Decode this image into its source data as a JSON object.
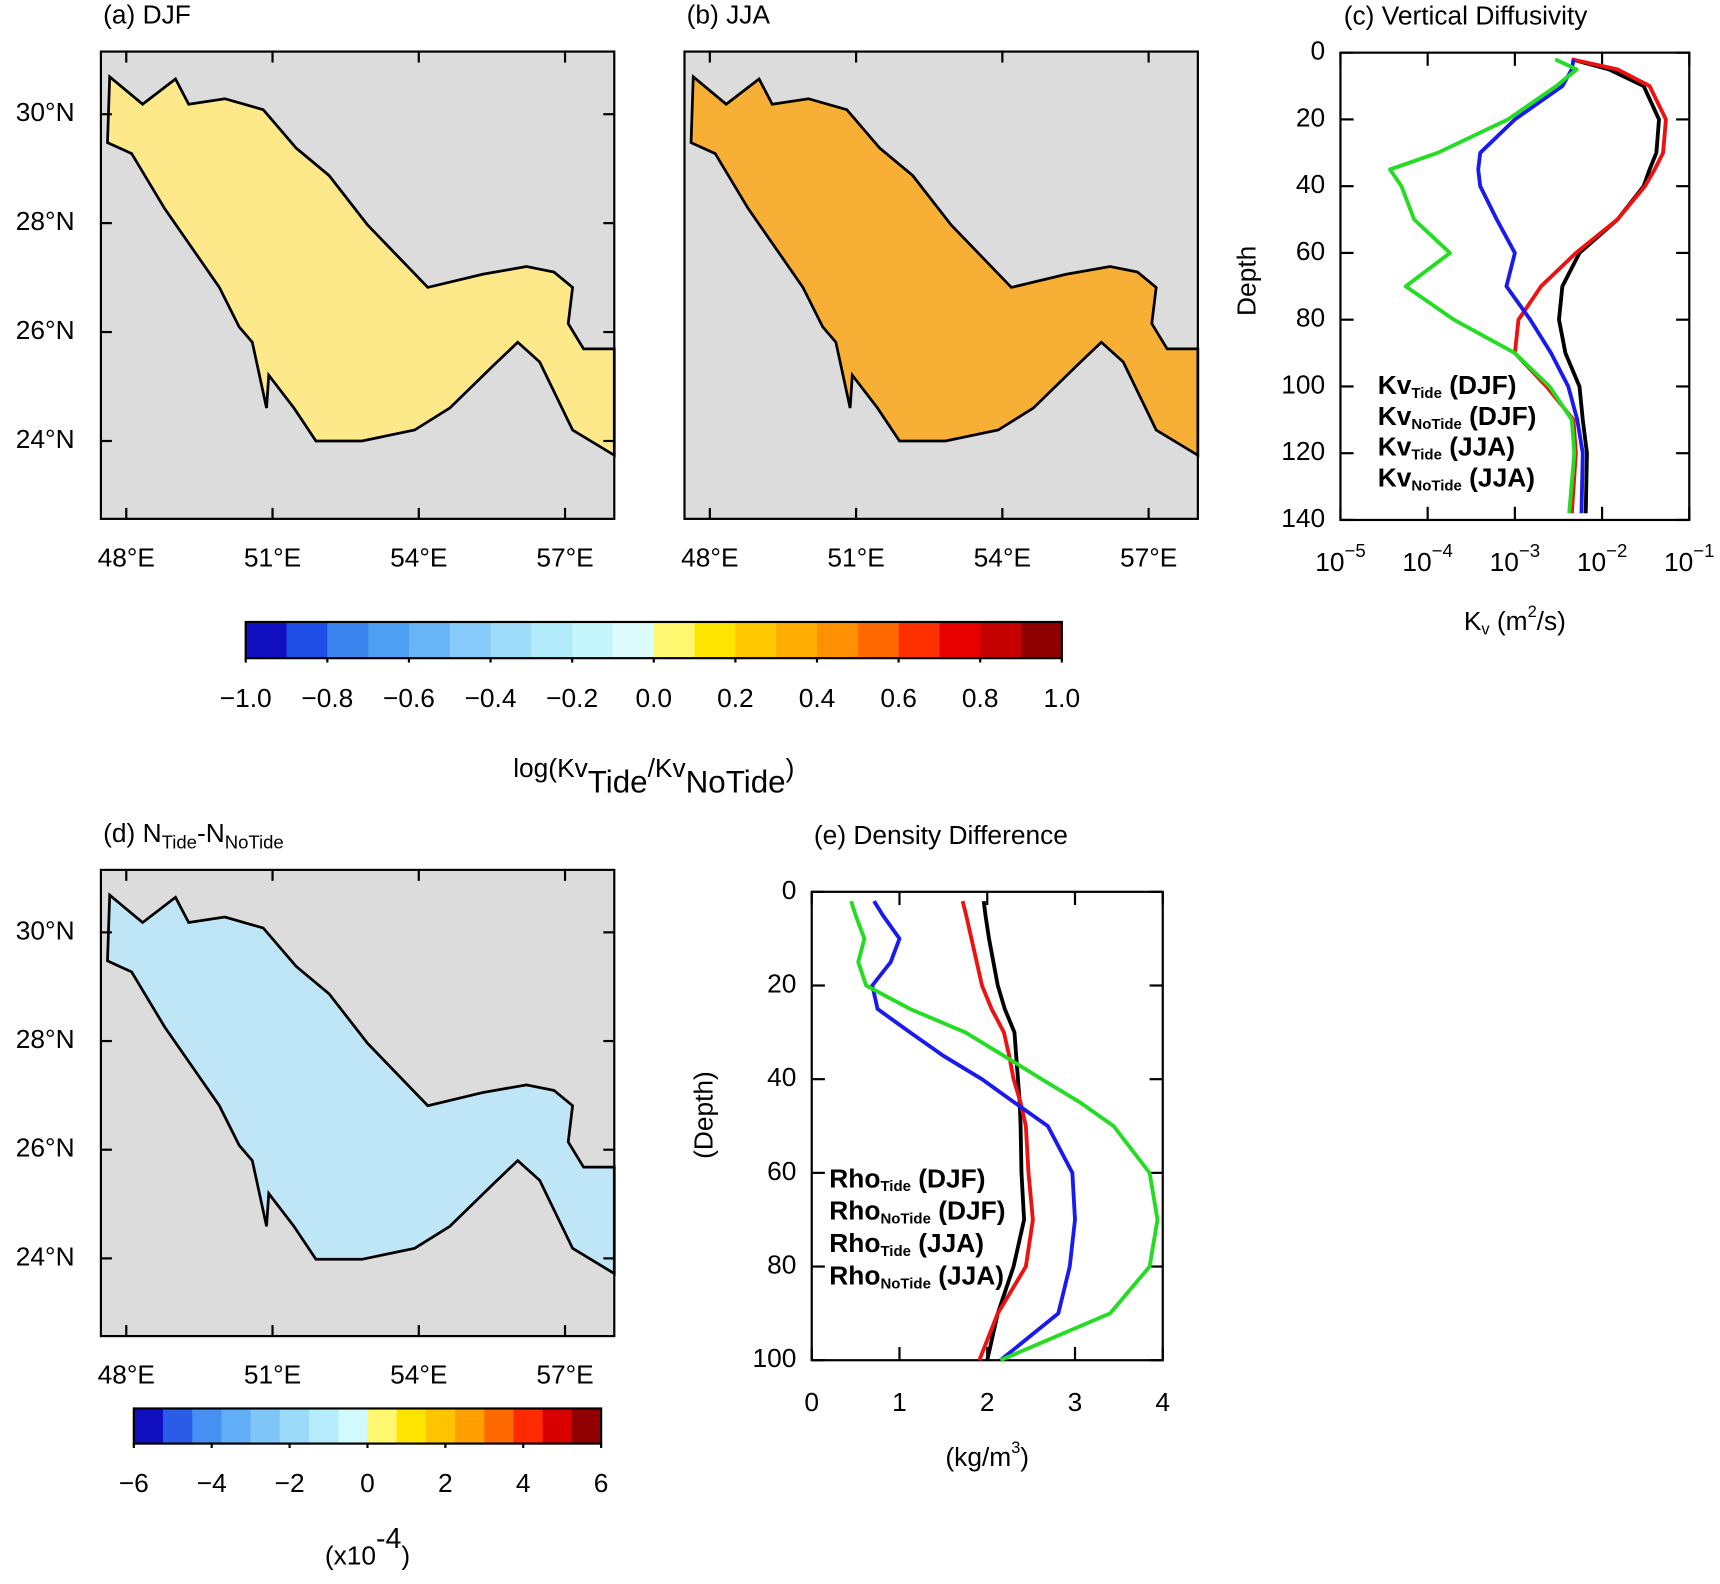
{
  "chart_data": [
    {
      "type": "map",
      "title": "(a) DJF",
      "color": "#fde98a",
      "xlim": [
        47.48,
        58.01
      ],
      "ylim": [
        22.57,
        31.15
      ],
      "xticks": [
        {
          "value": 48,
          "label": "48°E"
        },
        {
          "value": 51,
          "label": "51°E"
        },
        {
          "value": 54,
          "label": "54°E"
        },
        {
          "value": 57,
          "label": "57°E"
        }
      ],
      "yticks": [
        {
          "value": 24,
          "label": "24°N"
        },
        {
          "value": 26,
          "label": "26°N"
        },
        {
          "value": 28,
          "label": "28°N"
        },
        {
          "value": 30,
          "label": "30°N"
        }
      ]
    },
    {
      "type": "map",
      "title": "(b) JJA",
      "color": "#f7b035",
      "xlim": [
        47.48,
        58.01
      ],
      "ylim": [
        22.57,
        31.15
      ],
      "xticks": [
        {
          "value": 48,
          "label": "48°E"
        },
        {
          "value": 51,
          "label": "51°E"
        },
        {
          "value": 54,
          "label": "54°E"
        },
        {
          "value": 57,
          "label": "57°E"
        }
      ]
    },
    {
      "type": "line",
      "title": "(c) Vertical Diffusivity",
      "xlog": true,
      "yinvert": true,
      "xlim": [
        1e-05,
        0.1
      ],
      "ylim": [
        0,
        140
      ],
      "xticks": [
        {
          "value": 1e-05,
          "label": "10",
          "sup": "−5"
        },
        {
          "value": 0.0001,
          "label": "10",
          "sup": "−4"
        },
        {
          "value": 0.001,
          "label": "10",
          "sup": "−3"
        },
        {
          "value": 0.01,
          "label": "10",
          "sup": "−2"
        },
        {
          "value": 0.1,
          "label": "10",
          "sup": "−1"
        }
      ],
      "yticks": [
        0,
        20,
        40,
        60,
        80,
        100,
        120,
        140
      ],
      "xlabel": [
        {
          "text": "K"
        },
        {
          "text": "v",
          "shift": "sub"
        },
        {
          "text": " (m"
        },
        {
          "text": "2",
          "shift": "sup"
        },
        {
          "text": "/s)"
        }
      ],
      "ylabel": "Depth",
      "y": [
        2,
        5,
        10,
        20,
        30,
        35,
        40,
        50,
        60,
        70,
        80,
        90,
        100,
        110,
        120,
        138
      ],
      "series": [
        {
          "name": [
            {
              "text": "Kv"
            },
            {
              "text": "Tide",
              "shift": "sub"
            },
            {
              "text": " (DJF)"
            }
          ],
          "color": "#000000",
          "values": [
            0.0045,
            0.012,
            0.03,
            0.045,
            0.042,
            0.035,
            0.03,
            0.015,
            0.0055,
            0.0035,
            0.0032,
            0.0038,
            0.0055,
            0.006,
            0.0067,
            0.0065
          ]
        },
        {
          "name": [
            {
              "text": "Kv"
            },
            {
              "text": "NoTide",
              "shift": "sub"
            },
            {
              "text": " (DJF)"
            }
          ],
          "color": "#ee1111",
          "values": [
            0.0045,
            0.015,
            0.035,
            0.054,
            0.05,
            0.04,
            0.031,
            0.015,
            0.005,
            0.002,
            0.0011,
            0.001,
            0.0023,
            0.0047,
            0.005,
            0.0045
          ]
        },
        {
          "name": [
            {
              "text": "Kv"
            },
            {
              "text": "Tide",
              "shift": "sub"
            },
            {
              "text": " (JJA)"
            }
          ],
          "color": "#1a1aee",
          "values": [
            0.0047,
            0.0045,
            0.0035,
            0.001,
            0.0004,
            0.00038,
            0.0004,
            0.00062,
            0.001,
            0.0008,
            0.0015,
            0.0026,
            0.0041,
            0.0052,
            0.006,
            0.0058
          ]
        },
        {
          "name": [
            {
              "text": "Kv"
            },
            {
              "text": "NoTide",
              "shift": "sub"
            },
            {
              "text": " (JJA)"
            }
          ],
          "color": "#22dd22",
          "values": [
            0.0029,
            0.0051,
            0.003,
            0.00083,
            0.00013,
            3.7e-05,
            5e-05,
            7e-05,
            0.00018,
            5.6e-05,
            0.0002,
            0.001,
            0.0025,
            0.0045,
            0.0048,
            0.0042
          ]
        }
      ]
    },
    {
      "type": "colorbar",
      "colors": [
        "#1010c0",
        "#1e4ee6",
        "#3a86ee",
        "#4d9ff3",
        "#68b6f8",
        "#86cbf9",
        "#9fdcfa",
        "#b2ecfb",
        "#c4f6fb",
        "#ddfdfd",
        "#fff870",
        "#ffe600",
        "#ffc800",
        "#ffae00",
        "#ff9000",
        "#ff6a00",
        "#ff3000",
        "#e80000",
        "#c40000",
        "#8e0000"
      ],
      "lim": [
        -1,
        1
      ],
      "ticks": [
        {
          "value": -1,
          "label": "−1.0"
        },
        {
          "value": -0.8,
          "label": "−0.8"
        },
        {
          "value": -0.6,
          "label": "−0.6"
        },
        {
          "value": -0.4,
          "label": "−0.4"
        },
        {
          "value": -0.2,
          "label": "−0.2"
        },
        {
          "value": 0,
          "label": "0.0"
        },
        0.2,
        0.4,
        0.6,
        0.8,
        {
          "value": 1,
          "label": "1.0"
        }
      ],
      "label": [
        {
          "text": "log(Kv"
        },
        {
          "text": "Tide",
          "shift": "sub"
        },
        {
          "text": "/Kv"
        },
        {
          "text": "NoTide",
          "shift": "sub"
        },
        {
          "text": ")"
        }
      ]
    },
    {
      "type": "map",
      "title": [
        {
          "text": "(d) N"
        },
        {
          "text": "Tide",
          "shift": "sub"
        },
        {
          "text": "-N"
        },
        {
          "text": "NoTide",
          "shift": "sub"
        }
      ],
      "color": "#bfe6f7",
      "xlim": [
        47.48,
        58.01
      ],
      "ylim": [
        22.57,
        31.15
      ],
      "xticks": [
        {
          "value": 48,
          "label": "48°E"
        },
        {
          "value": 51,
          "label": "51°E"
        },
        {
          "value": 54,
          "label": "54°E"
        },
        {
          "value": 57,
          "label": "57°E"
        }
      ],
      "yticks": [
        {
          "value": 24,
          "label": "24°N"
        },
        {
          "value": 26,
          "label": "26°N"
        },
        {
          "value": 28,
          "label": "28°N"
        },
        {
          "value": 30,
          "label": "30°N"
        }
      ]
    },
    {
      "type": "colorbar",
      "colors": [
        "#1010c0",
        "#2a5ce8",
        "#4590f0",
        "#62aef6",
        "#80c6f8",
        "#9cdaf9",
        "#b4ecfb",
        "#d2fafc",
        "#fff870",
        "#ffe400",
        "#ffc400",
        "#ffa000",
        "#ff6a00",
        "#ff2a00",
        "#d80000",
        "#900000"
      ],
      "lim": [
        -6,
        6
      ],
      "ticks": [
        {
          "value": -6,
          "label": "−6"
        },
        {
          "value": -4,
          "label": "−4"
        },
        {
          "value": -2,
          "label": "−2"
        },
        0,
        2,
        4,
        6
      ],
      "label": [
        {
          "text": "(x10"
        },
        {
          "text": "-4",
          "shift": "sup"
        },
        {
          "text": ")"
        }
      ]
    },
    {
      "type": "line",
      "title": "(e) Density Difference",
      "xlog": false,
      "yinvert": true,
      "xlim": [
        0,
        4
      ],
      "ylim": [
        0,
        100
      ],
      "xticks": [
        0,
        1,
        2,
        3,
        4
      ],
      "yticks": [
        0,
        20,
        40,
        60,
        80,
        100
      ],
      "xlabel": [
        {
          "text": "(kg/m"
        },
        {
          "text": "3",
          "shift": "sup"
        },
        {
          "text": ")"
        }
      ],
      "ylabel": "(Depth)",
      "y": [
        2,
        5,
        10,
        15,
        20,
        25,
        30,
        35,
        40,
        45,
        50,
        60,
        70,
        80,
        90,
        100
      ],
      "series": [
        {
          "name": [
            {
              "text": "Rho"
            },
            {
              "text": "Tide",
              "shift": "sub"
            },
            {
              "text": " (DJF)"
            }
          ],
          "color": "#000000",
          "values": [
            1.96,
            1.98,
            2.02,
            2.07,
            2.12,
            2.2,
            2.31,
            2.33,
            2.35,
            2.37,
            2.38,
            2.39,
            2.42,
            2.3,
            2.12,
            2.0
          ]
        },
        {
          "name": [
            {
              "text": "Rho"
            },
            {
              "text": "NoTide",
              "shift": "sub"
            },
            {
              "text": " (DJF)"
            }
          ],
          "color": "#ee1111",
          "values": [
            1.72,
            1.76,
            1.82,
            1.88,
            1.94,
            2.05,
            2.19,
            2.25,
            2.3,
            2.38,
            2.44,
            2.47,
            2.52,
            2.44,
            2.12,
            1.91
          ]
        },
        {
          "name": [
            {
              "text": "Rho"
            },
            {
              "text": "Tide",
              "shift": "sub"
            },
            {
              "text": " (JJA)"
            }
          ],
          "color": "#1a1aee",
          "values": [
            0.71,
            0.81,
            1.0,
            0.9,
            0.69,
            0.75,
            1.12,
            1.5,
            1.94,
            2.31,
            2.69,
            2.97,
            3.0,
            2.94,
            2.81,
            2.15
          ]
        },
        {
          "name": [
            {
              "text": "Rho"
            },
            {
              "text": "NoTide",
              "shift": "sub"
            },
            {
              "text": " (JJA)"
            }
          ],
          "color": "#22dd22",
          "values": [
            0.45,
            0.5,
            0.6,
            0.53,
            0.62,
            1.12,
            1.75,
            2.19,
            2.62,
            3.06,
            3.44,
            3.85,
            3.94,
            3.85,
            3.4,
            2.15
          ]
        }
      ]
    }
  ]
}
